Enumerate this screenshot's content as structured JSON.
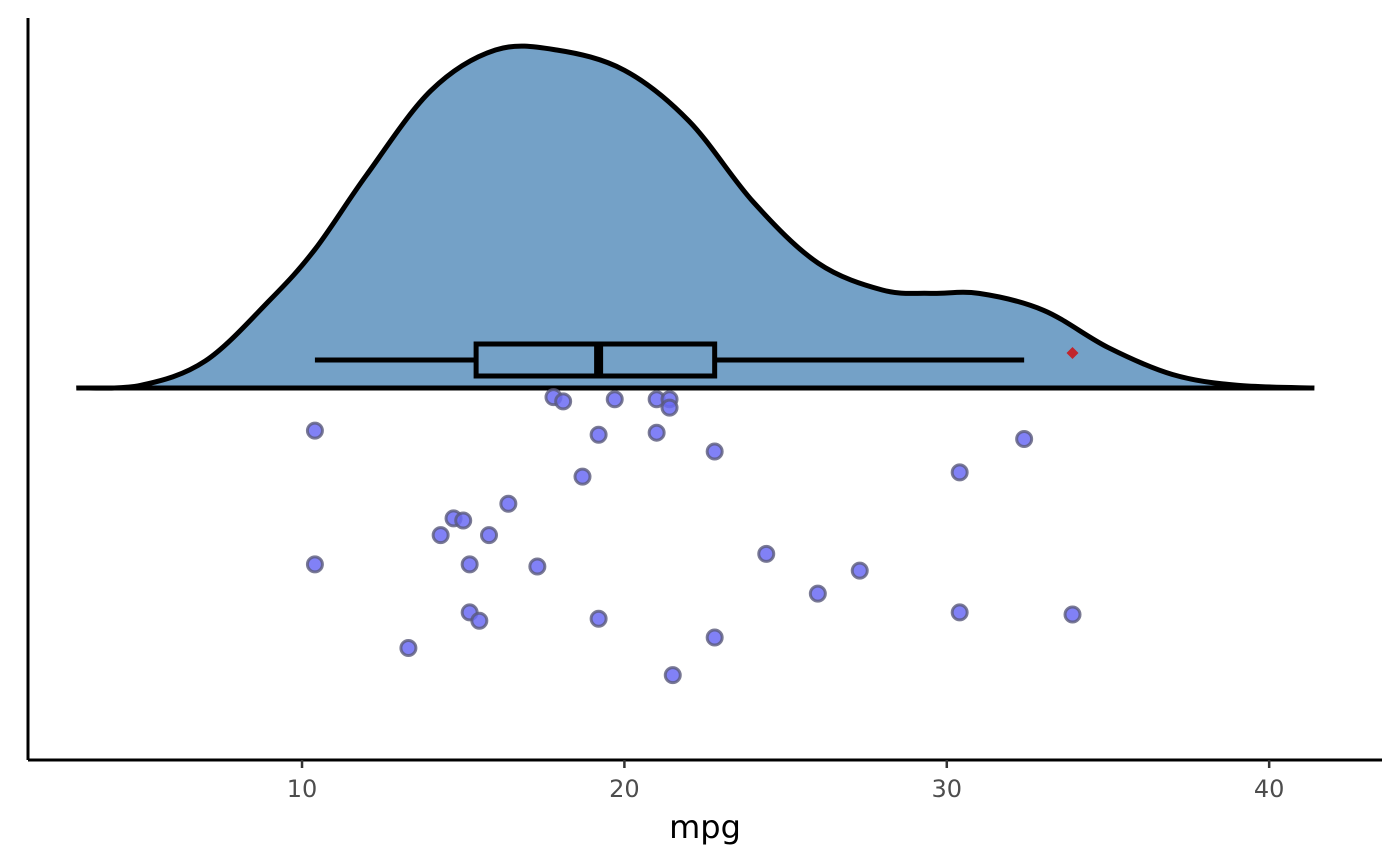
{
  "chart_data": {
    "type": "raincloud",
    "title": "",
    "xlabel": "mpg",
    "ylabel": "",
    "xlim": [
      1.5,
      43.5
    ],
    "x_ticks": [
      10,
      20,
      30,
      40
    ],
    "x_tick_labels": [
      "10",
      "20",
      "30",
      "40"
    ],
    "grid": false,
    "density": {
      "fill": "#74a1c7",
      "stroke": "#000000",
      "range": [
        3.0,
        41.4
      ],
      "x": [
        3.0,
        5,
        7,
        9,
        10.4,
        12,
        14,
        16,
        17.9,
        20,
        22,
        24,
        26,
        28,
        29.5,
        31,
        33,
        35,
        37,
        39,
        41.4
      ],
      "y": [
        0.0,
        0.008,
        0.08,
        0.26,
        0.41,
        0.63,
        0.88,
        1.0,
        1.0,
        0.94,
        0.79,
        0.55,
        0.37,
        0.29,
        0.28,
        0.28,
        0.23,
        0.12,
        0.04,
        0.008,
        0.0
      ]
    },
    "boxplot": {
      "whisker_low": 10.4,
      "q1": 15.4,
      "median": 19.2,
      "q3": 22.8,
      "whisker_high": 32.4,
      "outliers": [
        33.9
      ],
      "outlier_color": "#c0262d"
    },
    "points": {
      "fill": "#6b6bf5",
      "stroke": "#5a5a7a",
      "values": [
        {
          "x": 10.4,
          "jitter": 0.3
        },
        {
          "x": 10.4,
          "jitter": -0.02
        },
        {
          "x": 13.3,
          "jitter": -0.22
        },
        {
          "x": 14.3,
          "jitter": 0.05
        },
        {
          "x": 14.7,
          "jitter": 0.09
        },
        {
          "x": 15.0,
          "jitter": 0.085
        },
        {
          "x": 15.2,
          "jitter": -0.02
        },
        {
          "x": 15.2,
          "jitter": -0.135
        },
        {
          "x": 15.5,
          "jitter": -0.155
        },
        {
          "x": 15.8,
          "jitter": 0.05
        },
        {
          "x": 16.4,
          "jitter": 0.125
        },
        {
          "x": 17.3,
          "jitter": -0.025
        },
        {
          "x": 17.8,
          "jitter": 0.38
        },
        {
          "x": 18.1,
          "jitter": 0.37
        },
        {
          "x": 18.7,
          "jitter": 0.19
        },
        {
          "x": 19.2,
          "jitter": 0.29
        },
        {
          "x": 19.2,
          "jitter": -0.15
        },
        {
          "x": 19.7,
          "jitter": 0.375
        },
        {
          "x": 21.0,
          "jitter": 0.375
        },
        {
          "x": 21.0,
          "jitter": 0.295
        },
        {
          "x": 21.4,
          "jitter": 0.375
        },
        {
          "x": 21.4,
          "jitter": 0.355
        },
        {
          "x": 21.5,
          "jitter": -0.285
        },
        {
          "x": 22.8,
          "jitter": 0.25
        },
        {
          "x": 22.8,
          "jitter": -0.195
        },
        {
          "x": 24.4,
          "jitter": 0.005
        },
        {
          "x": 26.0,
          "jitter": -0.09
        },
        {
          "x": 27.3,
          "jitter": -0.035
        },
        {
          "x": 30.4,
          "jitter": 0.2
        },
        {
          "x": 30.4,
          "jitter": -0.135
        },
        {
          "x": 32.4,
          "jitter": 0.28
        },
        {
          "x": 33.9,
          "jitter": -0.14
        }
      ]
    }
  }
}
